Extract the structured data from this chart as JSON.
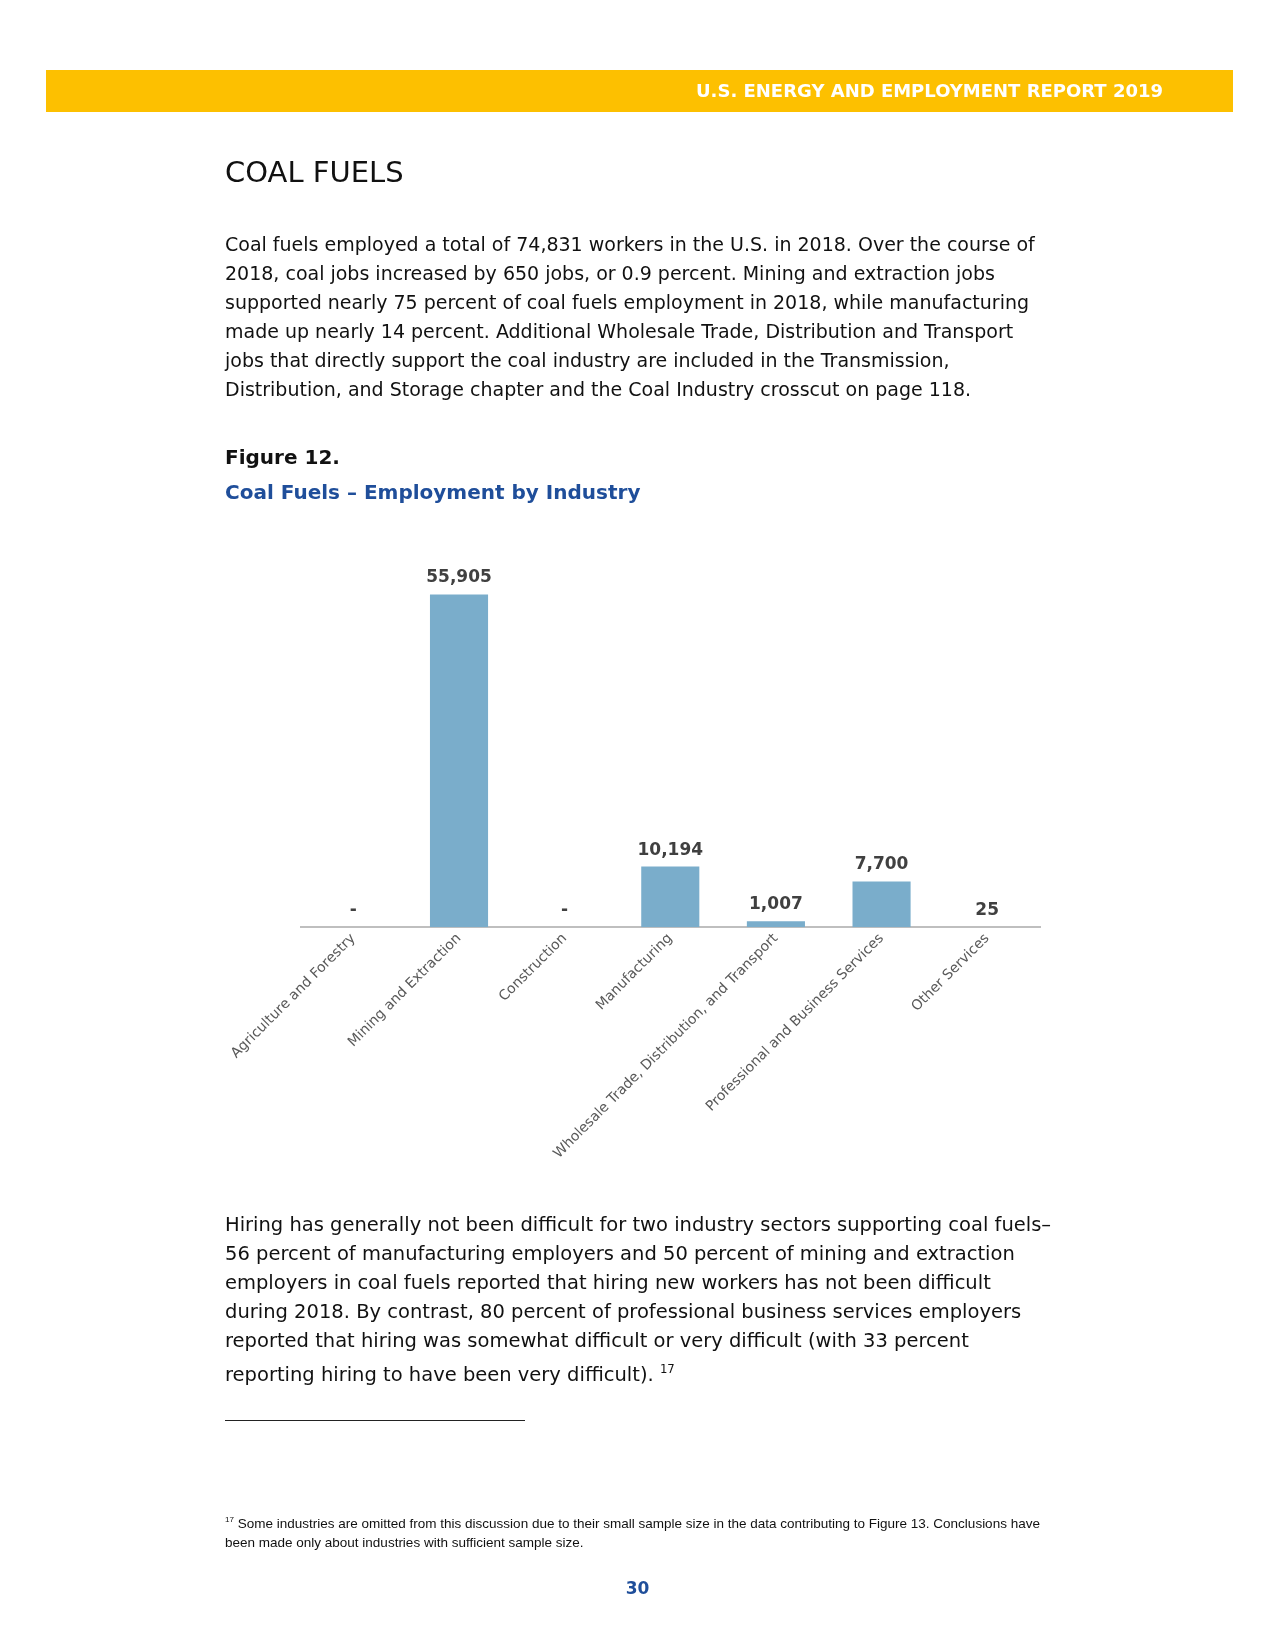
{
  "chart_data": {
    "type": "bar",
    "title": "Coal Fuels – Employment by Industry",
    "categories": [
      "Agriculture and Forestry",
      "Mining and Extraction",
      "Construction",
      "Manufacturing",
      "Wholesale Trade, Distribution, and Transport",
      "Professional and Business Services",
      "Other Services"
    ],
    "values": [
      0,
      55905,
      0,
      10194,
      1007,
      7700,
      25
    ],
    "value_labels": [
      "-",
      "55,905",
      "-",
      "10,194",
      "1,007",
      "7,700",
      "25"
    ],
    "color": "#7aadcb",
    "grid": false,
    "legend": false,
    "tick_labels": "x",
    "annotations": [
      "U.S. ENERGY AND EMPLOYMENT REPORT 2019",
      "COAL FUELS",
      "Coal fuels employed a total of 74,831 workers in the U.S. in 2018. Over the course of 2018, coal jobs increased by 650 jobs, or 0.9 percent. Mining and extraction jobs supported nearly 75 percent of coal fuels employment in 2018, while manufacturing made up nearly 14 percent.  Additional Wholesale Trade, Distribution and Transport jobs that directly support the coal industry are included in the Transmission, Distribution, and Storage chapter and the Coal Industry crosscut on page 118.",
      "Figure 12.",
      "Hiring has generally not been difficult for two industry sectors supporting coal fuels–56 percent of manufacturing employers and 50 percent of mining and extraction employers in coal fuels reported that hiring new workers has not been difficult during 2018. By contrast, 80 percent of professional business services employers reported that hiring was somewhat difficult or very difficult (with 33 percent reporting hiring to have been very difficult). $^{17}$",
      "$^{17}$ Some industries are omitted from this discussion due to their small sample size in the data contributing to Figure 13. Conclusions have been made only about industries with sufficient sample size.",
      "30"
    ]
  }
}
